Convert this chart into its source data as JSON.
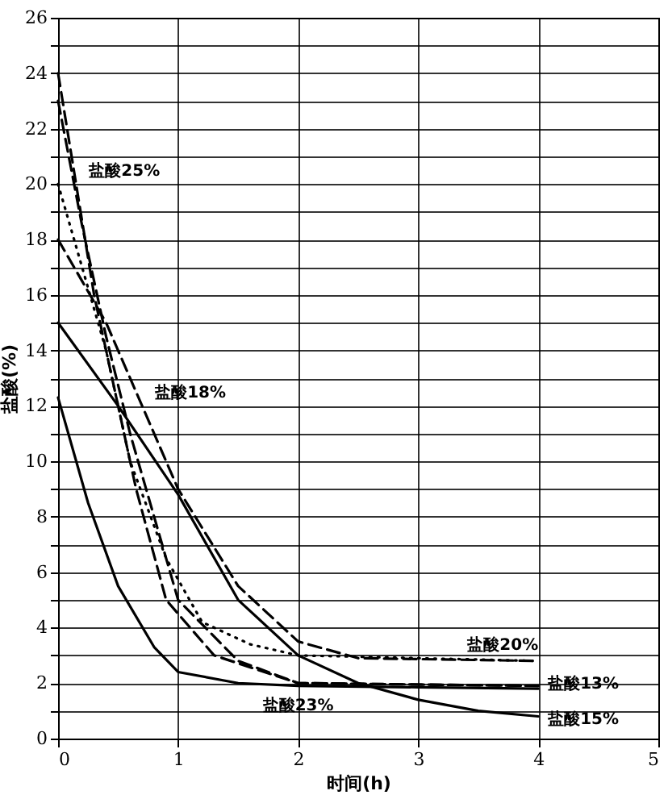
{
  "chart_data": {
    "type": "line",
    "xlabel": "时间(h)",
    "ylabel": "盐酸(%)",
    "xlim": [
      0,
      5
    ],
    "xticks": [
      0,
      1,
      2,
      3,
      4,
      5
    ],
    "ylim": [
      0,
      26
    ],
    "yticks": [
      0,
      {
        "value": 1,
        "label": null
      },
      2,
      {
        "value": 3,
        "label": null
      },
      4,
      {
        "value": 5,
        "label": null
      },
      6,
      {
        "value": 7,
        "label": null
      },
      8,
      {
        "value": 9,
        "label": null
      },
      10,
      {
        "value": 11,
        "label": null
      },
      12,
      {
        "value": 13,
        "label": null
      },
      14,
      {
        "value": 15,
        "label": null
      },
      16,
      {
        "value": 17,
        "label": null
      },
      18,
      {
        "value": 19,
        "label": null
      },
      20,
      {
        "value": 21,
        "label": null
      },
      22,
      {
        "value": 23,
        "label": null
      },
      24,
      {
        "value": 25,
        "label": null
      },
      26
    ],
    "grid": true,
    "marker": "none",
    "series": [
      {
        "name": "盐酸25%",
        "color": "#000000",
        "line_style": "dashed",
        "x": [
          0,
          0.15,
          0.3,
          0.5,
          0.65,
          0.9,
          1.3,
          2,
          4
        ],
        "values": [
          24,
          20,
          16,
          12,
          9,
          5,
          3,
          2,
          1.9
        ]
      },
      {
        "name": "盐酸23%",
        "color": "#000000",
        "line_style": "dashed",
        "x": [
          0,
          0.2,
          0.4,
          0.6,
          0.8,
          1,
          1.5,
          2,
          4
        ],
        "values": [
          23,
          18.5,
          14.5,
          11,
          8,
          5,
          2.8,
          2,
          1.9
        ]
      },
      {
        "name": "盐酸20%",
        "color": "#000000",
        "line_style": "dotted",
        "x": [
          0,
          0.2,
          0.4,
          0.6,
          0.9,
          1.2,
          1.6,
          2,
          4
        ],
        "values": [
          20,
          17,
          14,
          10,
          6.5,
          4.2,
          3.4,
          3,
          2.8
        ]
      },
      {
        "name": "盐酸18%",
        "color": "#000000",
        "line_style": "dashed",
        "x": [
          0,
          0.2,
          0.4,
          0.7,
          1,
          1.5,
          2,
          2.5,
          4
        ],
        "values": [
          18,
          16.5,
          15,
          12,
          9,
          5.5,
          3.5,
          2.9,
          2.8
        ]
      },
      {
        "name": "盐酸15%",
        "color": "#000000",
        "line_style": "solid",
        "x": [
          0,
          0.5,
          1,
          1.5,
          2,
          2.5,
          3,
          3.5,
          4
        ],
        "values": [
          15,
          12,
          8.8,
          5,
          3,
          2,
          1.4,
          1,
          0.8
        ]
      },
      {
        "name": "盐酸13%",
        "color": "#000000",
        "line_style": "solid",
        "x": [
          0,
          0.25,
          0.5,
          0.8,
          1,
          1.5,
          2,
          3,
          4
        ],
        "values": [
          12.3,
          8.5,
          5.5,
          3.3,
          2.4,
          2,
          1.9,
          1.85,
          1.8
        ]
      }
    ]
  }
}
